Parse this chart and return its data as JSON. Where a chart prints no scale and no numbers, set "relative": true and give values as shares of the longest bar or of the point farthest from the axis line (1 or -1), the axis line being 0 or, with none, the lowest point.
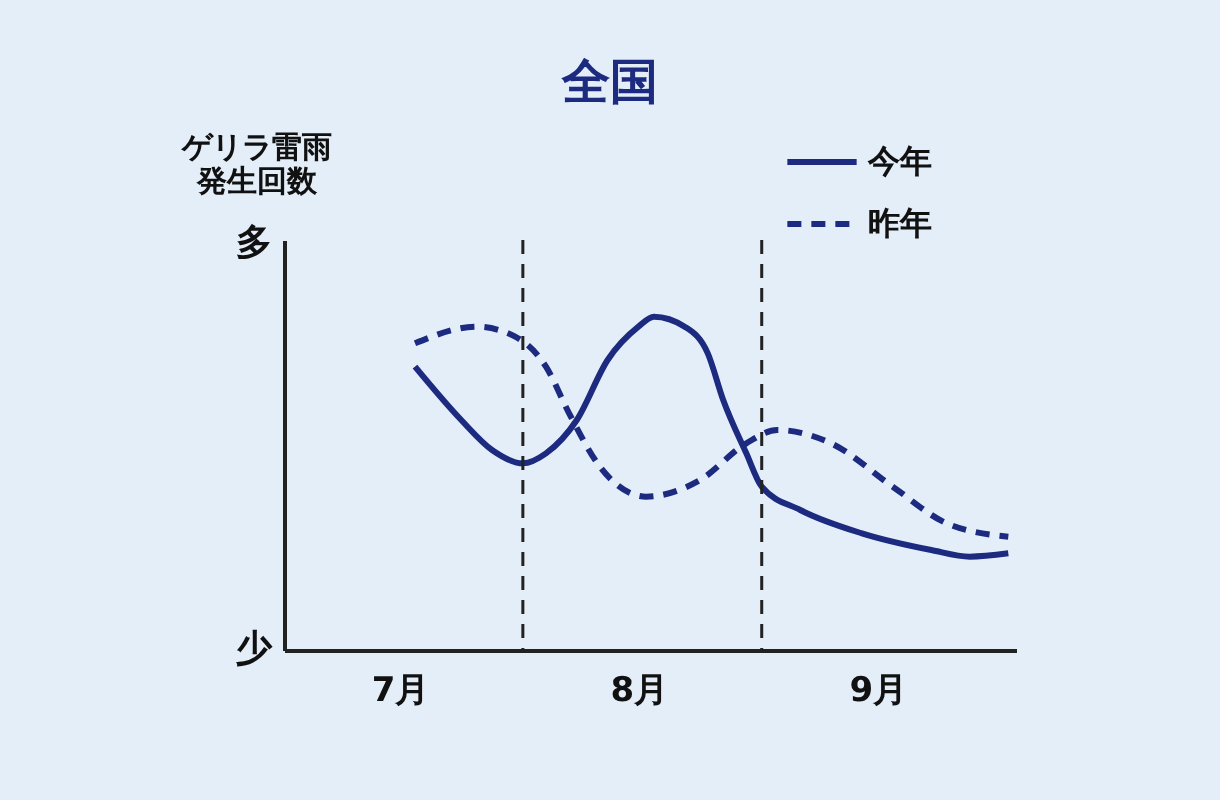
{
  "chart_data": {
    "type": "line",
    "title": "全国",
    "ylabel": "ゲリラ雷雨発生回数",
    "relative": true,
    "annotations": [
      "多",
      "少"
    ],
    "xlim": [
      "--07-01",
      "--10-04"
    ],
    "xticks": [
      {
        "value": "--07-16",
        "label": "7月"
      },
      {
        "value": "--08-16",
        "label": "8月"
      },
      {
        "value": "--09-16",
        "label": "9月"
      }
    ],
    "ref_lines": [
      {
        "axis": "x",
        "value": "--08-01",
        "color": "#222222",
        "line_style": "dashed"
      },
      {
        "axis": "x",
        "value": "--09-01",
        "color": "#222222",
        "line_style": "dashed"
      }
    ],
    "legend": "top right",
    "grid": false,
    "marker": "none",
    "series": [
      {
        "name": "今年",
        "color": "#1c2a80",
        "line_style": "solid",
        "x": [
          "--07-18",
          "--07-24",
          "--07-28",
          "--08-01",
          "--08-04",
          "--08-08",
          "--08-12",
          "--08-16",
          "--08-18",
          "--08-22",
          "--08-25",
          "--08-27",
          "--08-30",
          "--09-01",
          "--09-06",
          "--09-14",
          "--09-23",
          "--09-28",
          "--10-03"
        ],
        "values": [
          0.85,
          0.69,
          0.6,
          0.56,
          0.59,
          0.69,
          0.87,
          0.97,
          1.0,
          0.97,
          0.89,
          0.75,
          0.59,
          0.49,
          0.42,
          0.35,
          0.3,
          0.28,
          0.29
        ]
      },
      {
        "name": "昨年",
        "color": "#1c2a80",
        "line_style": "dashed",
        "x": [
          "--07-18",
          "--07-26",
          "--07-31",
          "--08-04",
          "--08-07",
          "--08-11",
          "--08-17",
          "--08-24",
          "--08-30",
          "--09-03",
          "--09-10",
          "--09-18",
          "--09-25",
          "--10-03"
        ],
        "values": [
          0.92,
          0.97,
          0.94,
          0.85,
          0.71,
          0.55,
          0.46,
          0.51,
          0.62,
          0.66,
          0.62,
          0.49,
          0.38,
          0.34
        ]
      }
    ]
  }
}
